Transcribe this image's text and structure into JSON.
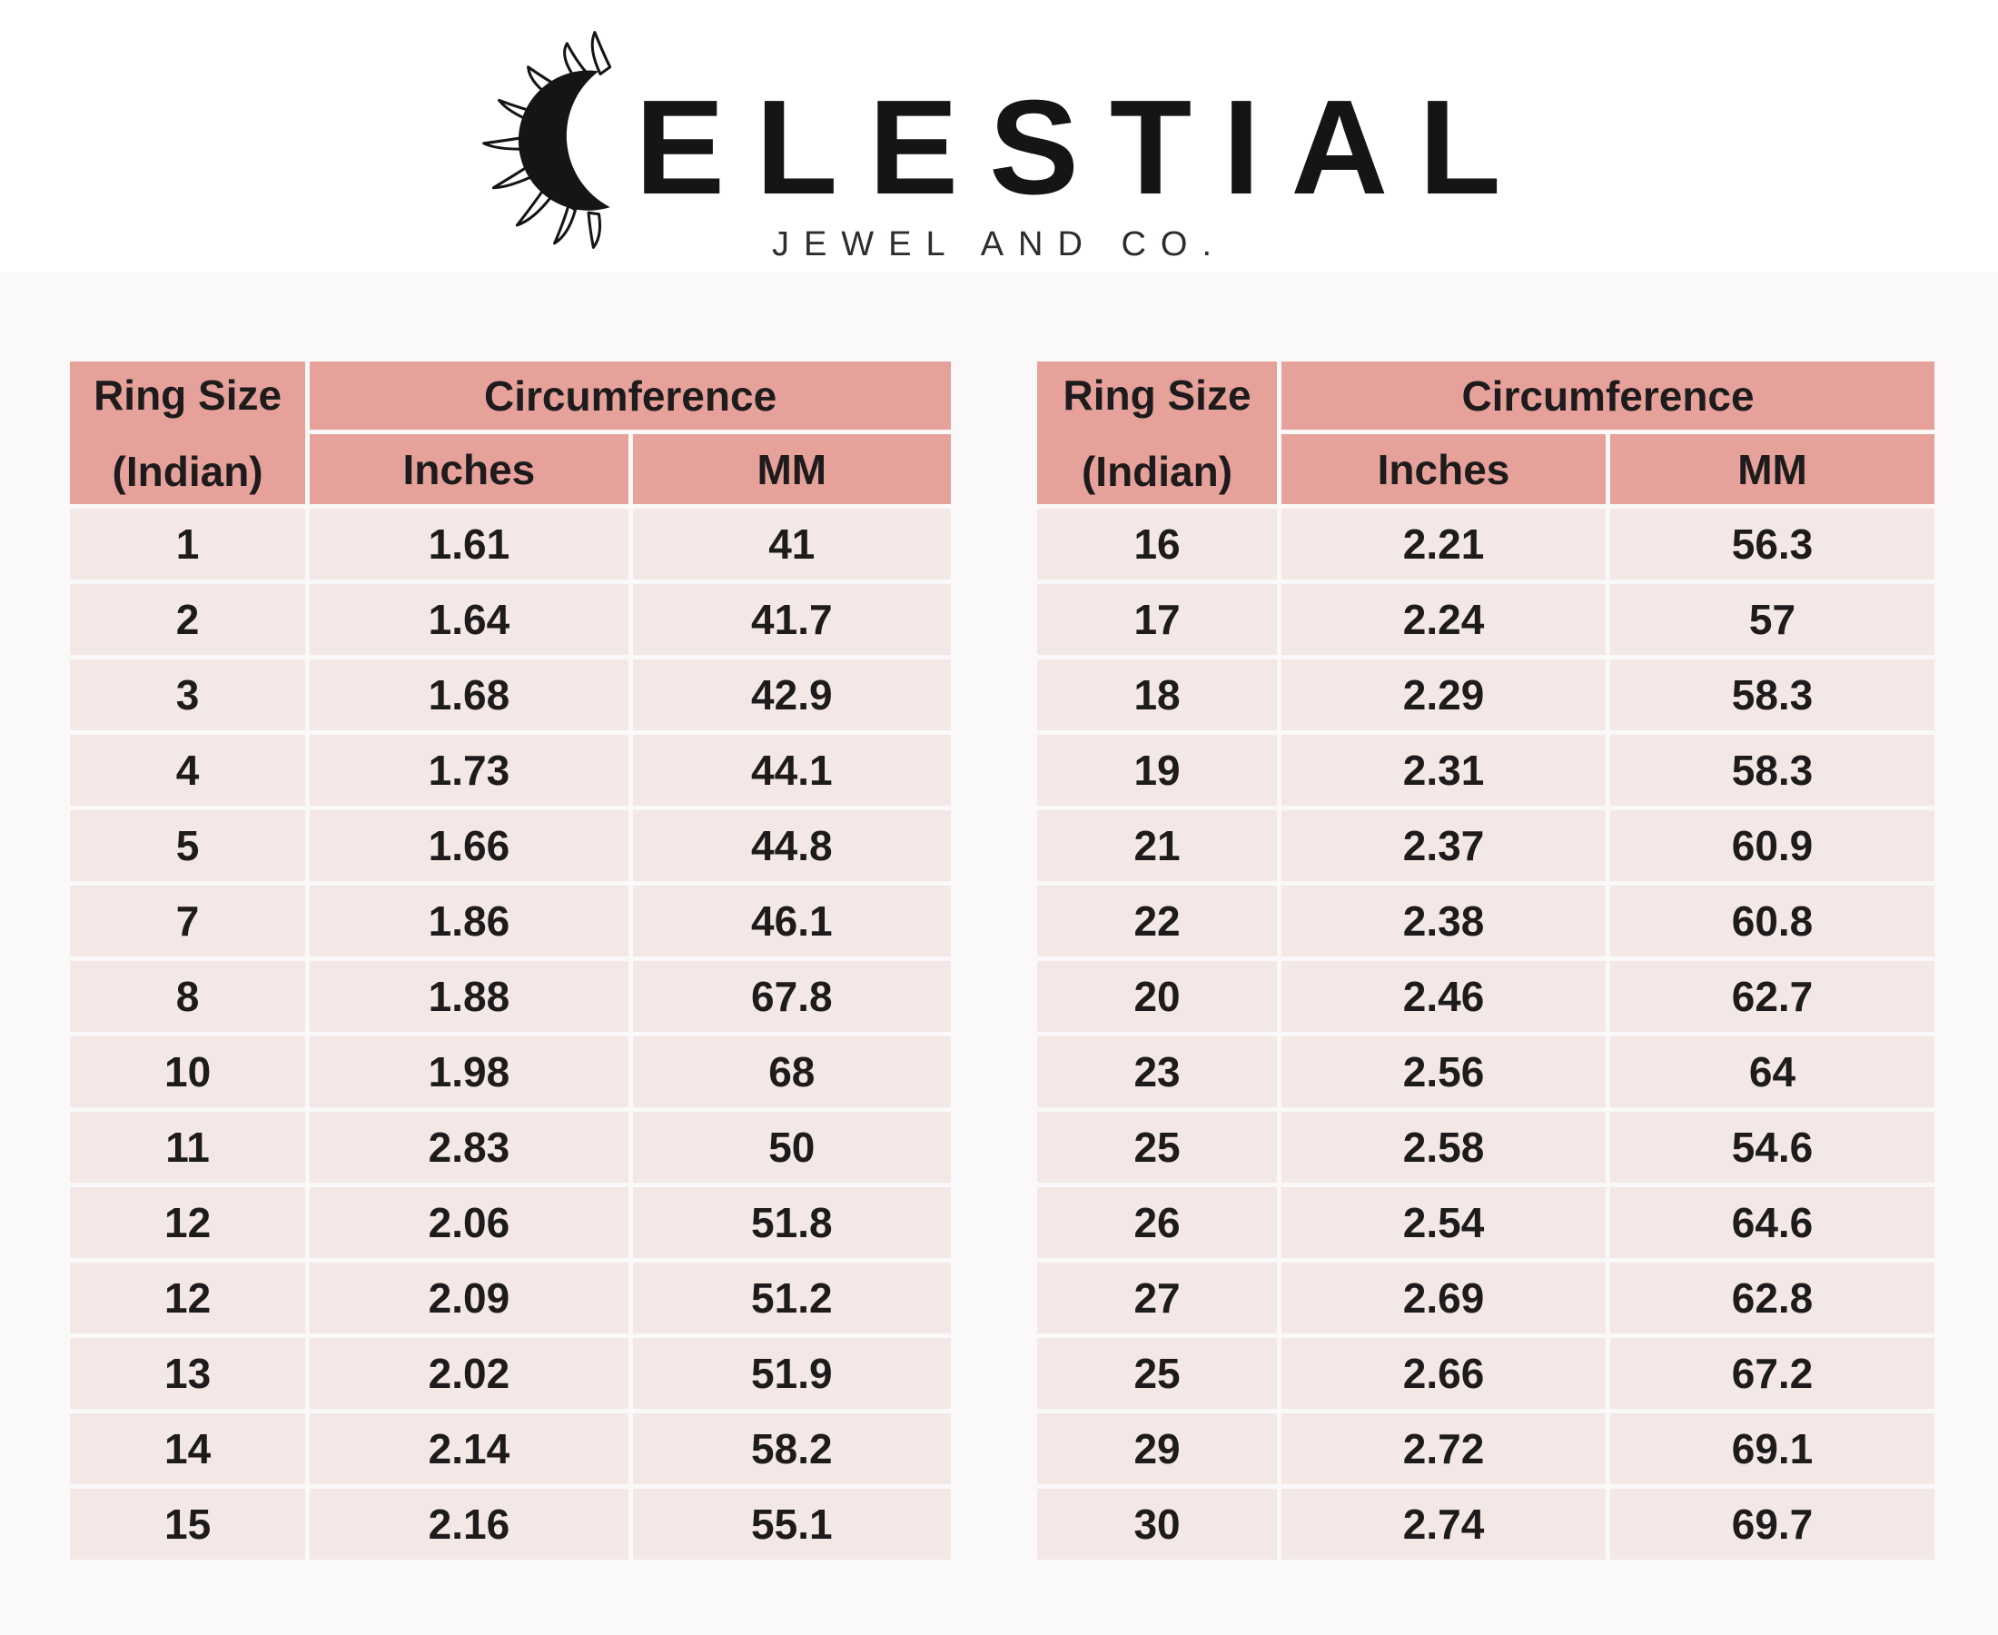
{
  "logo": {
    "brand": "CELESTIAL",
    "subtitle": "JEWEL AND CO.",
    "icon": "sun-crescent-icon"
  },
  "colors": {
    "header_bg": "#e6a19b",
    "row_bg": "#f3e8e6",
    "ink": "#1d1b1b",
    "page_tint": "#faf8f8"
  },
  "tables": [
    {
      "name": "ring-size-table-left",
      "header": {
        "ring_size_line1": "Ring Size",
        "ring_size_line2": "(Indian)",
        "circumference": "Circumference",
        "inches": "Inches",
        "mm": "MM"
      },
      "rows": [
        [
          "1",
          "1.61",
          "41"
        ],
        [
          "2",
          "1.64",
          "41.7"
        ],
        [
          "3",
          "1.68",
          "42.9"
        ],
        [
          "4",
          "1.73",
          "44.1"
        ],
        [
          "5",
          "1.66",
          "44.8"
        ],
        [
          "7",
          "1.86",
          "46.1"
        ],
        [
          "8",
          "1.88",
          "67.8"
        ],
        [
          "10",
          "1.98",
          "68"
        ],
        [
          "11",
          "2.83",
          "50"
        ],
        [
          "12",
          "2.06",
          "51.8"
        ],
        [
          "12",
          "2.09",
          "51.2"
        ],
        [
          "13",
          "2.02",
          "51.9"
        ],
        [
          "14",
          "2.14",
          "58.2"
        ],
        [
          "15",
          "2.16",
          "55.1"
        ]
      ]
    },
    {
      "name": "ring-size-table-right",
      "header": {
        "ring_size_line1": "Ring Size",
        "ring_size_line2": "(Indian)",
        "circumference": "Circumference",
        "inches": "Inches",
        "mm": "MM"
      },
      "rows": [
        [
          "16",
          "2.21",
          "56.3"
        ],
        [
          "17",
          "2.24",
          "57"
        ],
        [
          "18",
          "2.29",
          "58.3"
        ],
        [
          "19",
          "2.31",
          "58.3"
        ],
        [
          "21",
          "2.37",
          "60.9"
        ],
        [
          "22",
          "2.38",
          "60.8"
        ],
        [
          "20",
          "2.46",
          "62.7"
        ],
        [
          "23",
          "2.56",
          "64"
        ],
        [
          "25",
          "2.58",
          "54.6"
        ],
        [
          "26",
          "2.54",
          "64.6"
        ],
        [
          "27",
          "2.69",
          "62.8"
        ],
        [
          "25",
          "2.66",
          "67.2"
        ],
        [
          "29",
          "2.72",
          "69.1"
        ],
        [
          "30",
          "2.74",
          "69.7"
        ]
      ]
    }
  ]
}
